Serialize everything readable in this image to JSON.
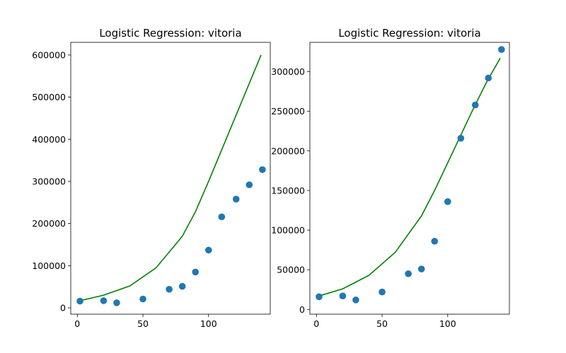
{
  "chart_data": [
    {
      "type": "scatter",
      "title": "Logistic Regression: vitoria",
      "xlabel": "",
      "ylabel": "",
      "xlim": [
        -5,
        147
      ],
      "ylim": [
        -15000,
        630000
      ],
      "xticks": [
        0,
        50,
        100
      ],
      "yticks": [
        0,
        100000,
        200000,
        300000,
        400000,
        500000,
        600000
      ],
      "grid": false,
      "points": {
        "x": [
          2,
          20,
          30,
          50,
          70,
          80,
          90,
          100,
          110,
          121,
          131,
          141
        ],
        "y": [
          16000,
          17000,
          12000,
          21000,
          44000,
          51000,
          85000,
          137000,
          216000,
          258000,
          292000,
          328000
        ],
        "color": "#1f77b4"
      },
      "fit_line": {
        "x": [
          2,
          20,
          40,
          60,
          80,
          90,
          100,
          110,
          120,
          130,
          140
        ],
        "y": [
          17000,
          30000,
          52000,
          95000,
          170000,
          228000,
          300000,
          375000,
          450000,
          525000,
          600000
        ],
        "color": "#008000"
      }
    },
    {
      "type": "scatter",
      "title": "Logistic Regression: vitoria",
      "xlabel": "",
      "ylabel": "",
      "xlim": [
        -5,
        147
      ],
      "ylim": [
        -6000,
        337000
      ],
      "xticks": [
        0,
        50,
        100
      ],
      "yticks": [
        0,
        50000,
        100000,
        150000,
        200000,
        250000,
        300000
      ],
      "grid": false,
      "points": {
        "x": [
          2,
          20,
          30,
          50,
          70,
          80,
          90,
          100,
          110,
          121,
          131,
          141
        ],
        "y": [
          16000,
          17000,
          12000,
          22000,
          45000,
          51000,
          86000,
          136000,
          216000,
          258000,
          292000,
          328000
        ],
        "color": "#1f77b4"
      },
      "fit_line": {
        "x": [
          2,
          20,
          40,
          60,
          80,
          90,
          100,
          110,
          120,
          130,
          140
        ],
        "y": [
          17000,
          26000,
          43000,
          72000,
          118000,
          150000,
          185000,
          220000,
          255000,
          288000,
          317000
        ],
        "color": "#008000"
      }
    }
  ]
}
